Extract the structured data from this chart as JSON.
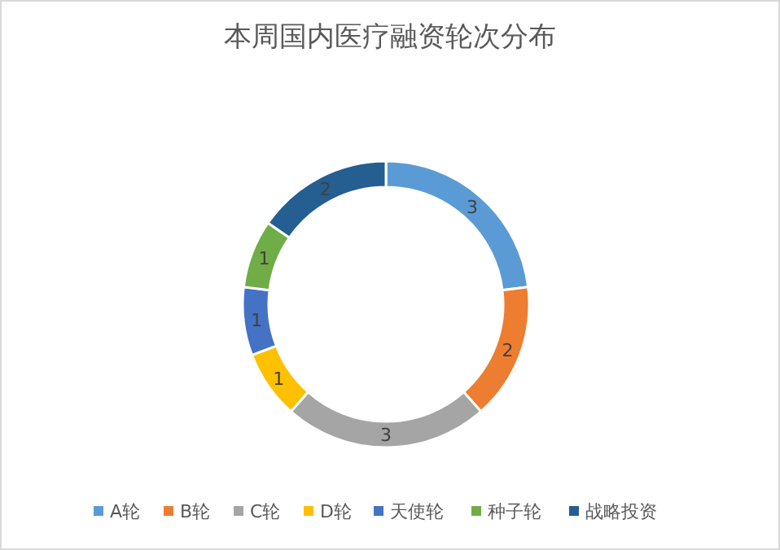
{
  "chart_data": {
    "type": "donut",
    "title": "本周国内医疗融资轮次分布",
    "categories": [
      "A轮",
      "B轮",
      "C轮",
      "D轮",
      "天使轮",
      "种子轮",
      "战略投资"
    ],
    "values": [
      3,
      2,
      3,
      1,
      1,
      1,
      2
    ],
    "colors": [
      "#5b9bd5",
      "#ed7d31",
      "#a5a5a5",
      "#ffc000",
      "#4472c4",
      "#70ad47",
      "#255e91"
    ],
    "data_labels": true,
    "legend": "bottom"
  }
}
